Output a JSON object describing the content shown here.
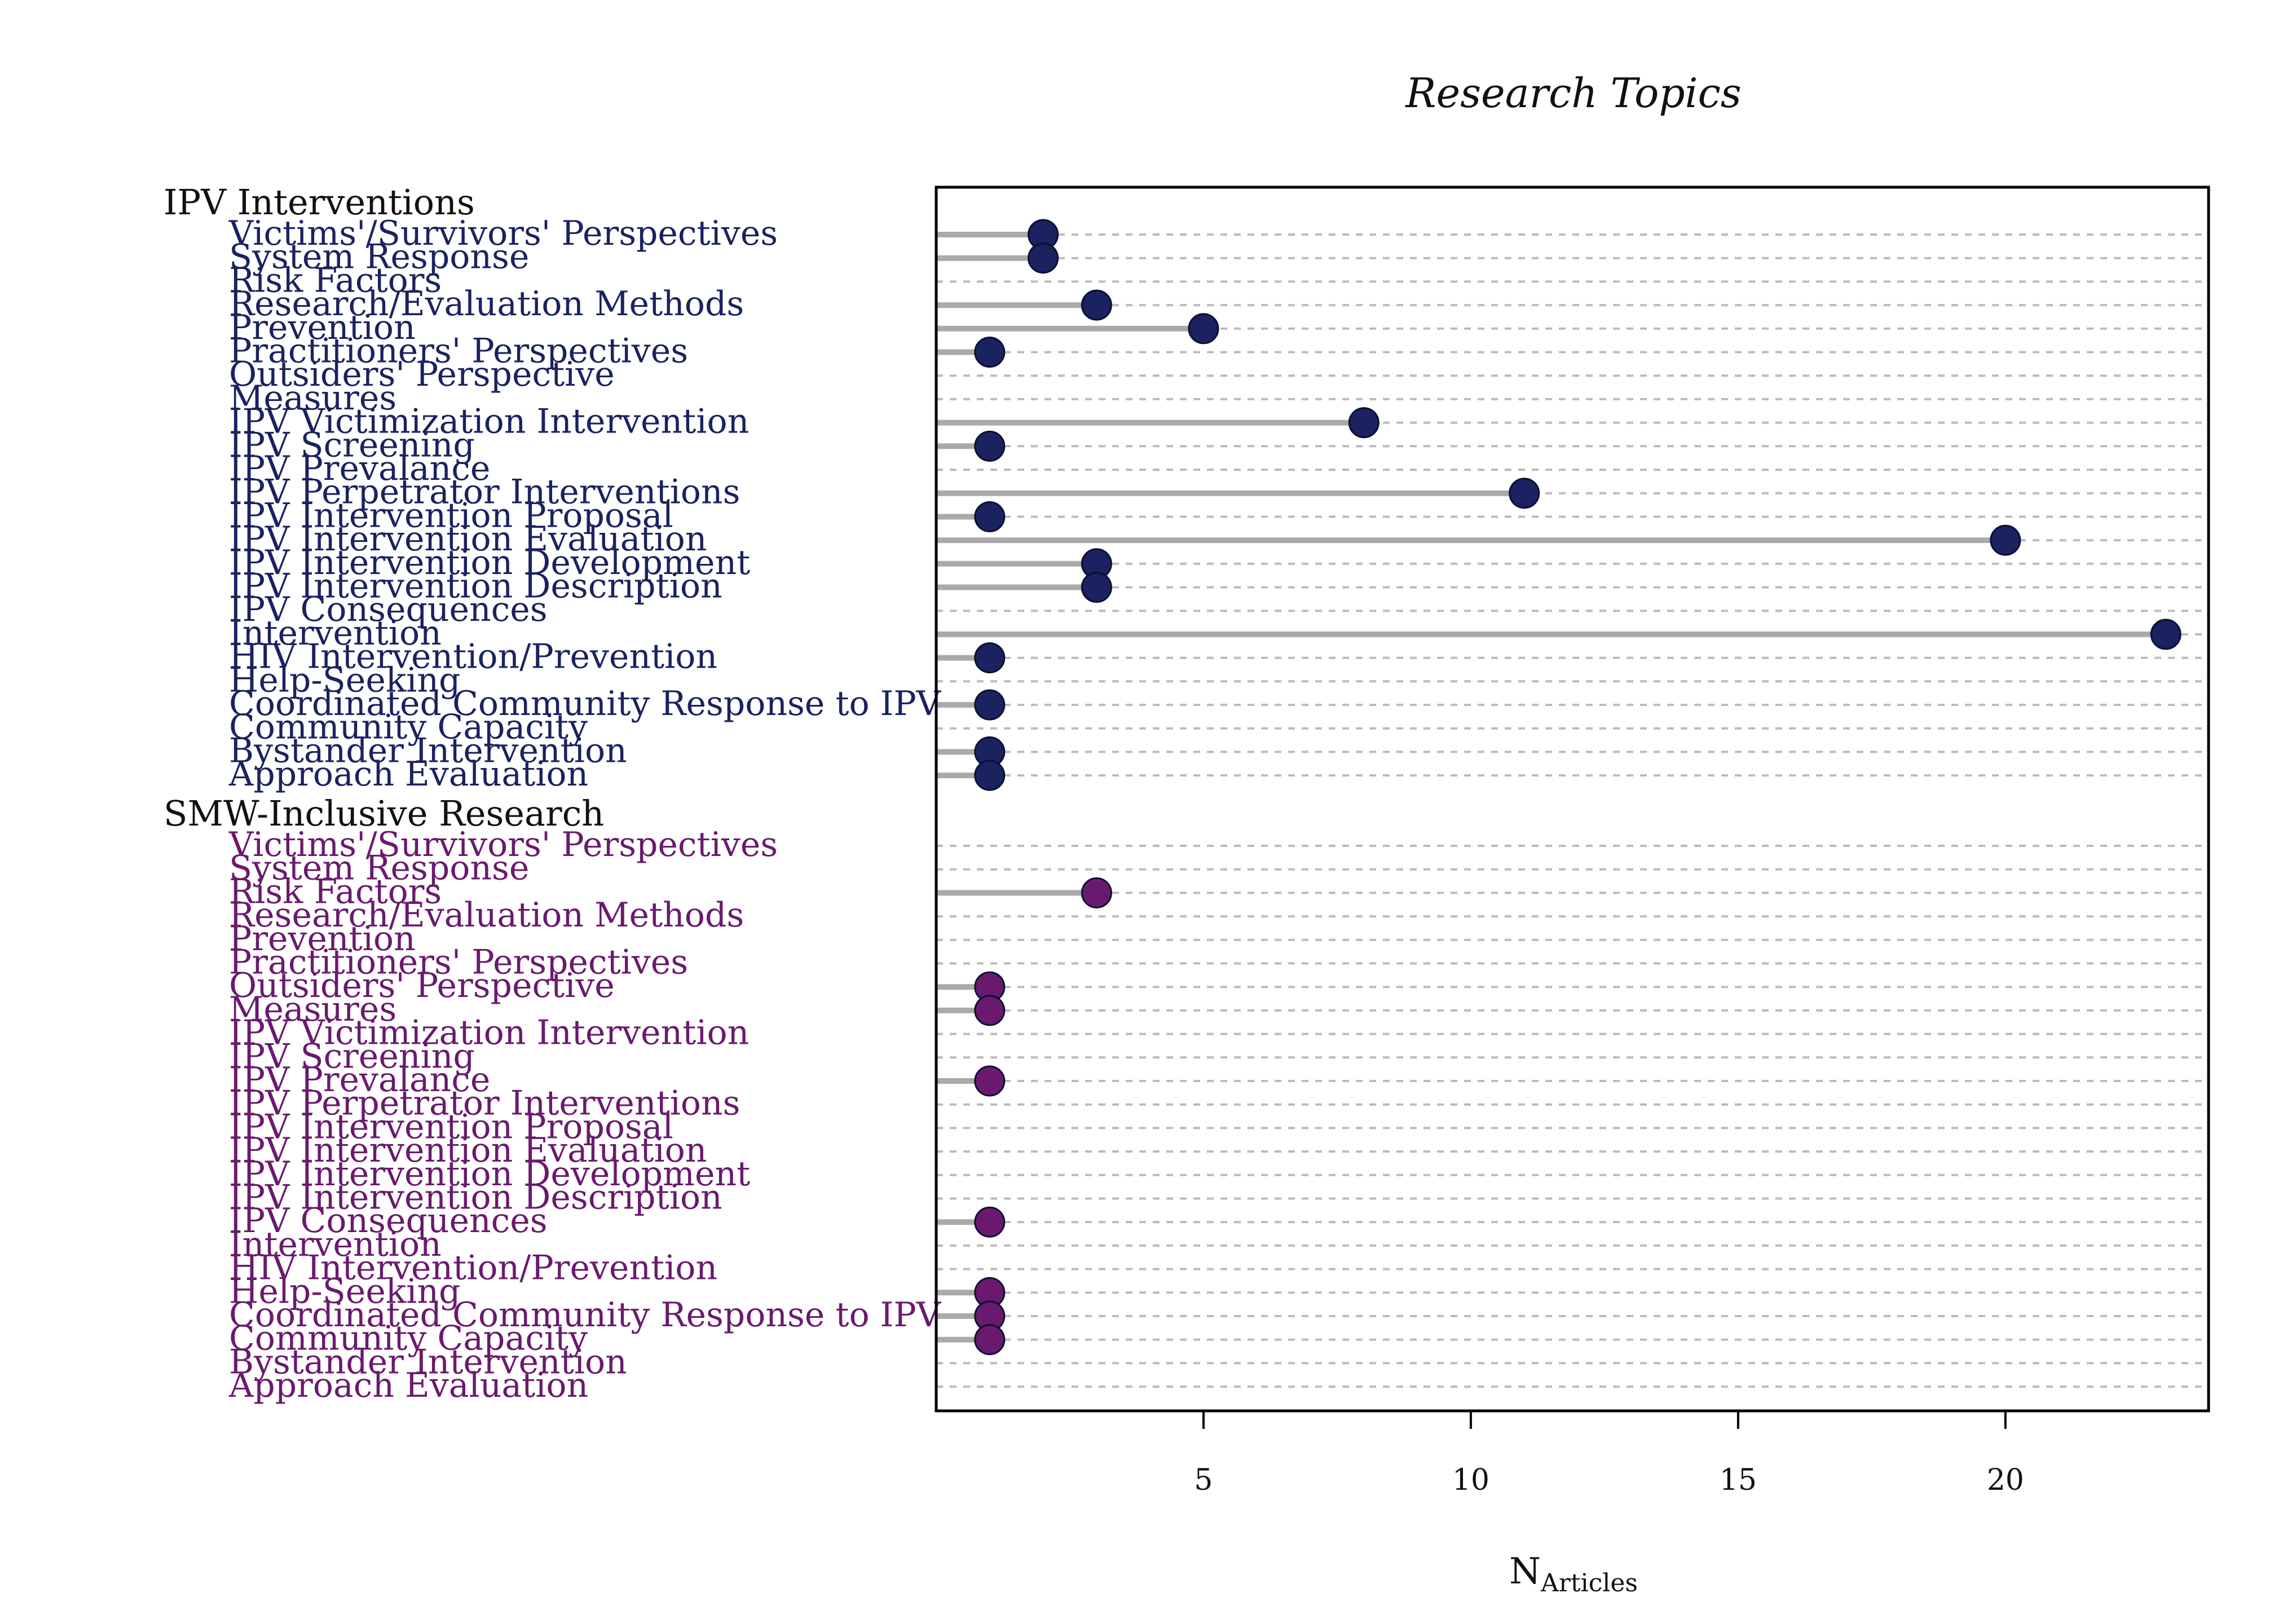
{
  "chart_data": {
    "type": "dot",
    "title": "Research Topics",
    "xlabel": "N",
    "xlabel_subscript": "Articles",
    "xlim": [
      0,
      23.8
    ],
    "xticks": [
      5,
      10,
      15,
      20
    ],
    "grid": "dashed horizontal lines per row",
    "groups": [
      {
        "name": "IPV Interventions",
        "color": "#1a2260",
        "rows": [
          {
            "label": "Victims'/Survivors' Perspectives",
            "value": 2
          },
          {
            "label": "System Response",
            "value": 2
          },
          {
            "label": "Risk Factors",
            "value": 0
          },
          {
            "label": "Research/Evaluation Methods",
            "value": 3
          },
          {
            "label": "Prevention",
            "value": 5
          },
          {
            "label": "Practitioners' Perspectives",
            "value": 1
          },
          {
            "label": "Outsiders' Perspective",
            "value": 0
          },
          {
            "label": "Measures",
            "value": 0
          },
          {
            "label": "IPV Victimization Intervention",
            "value": 8
          },
          {
            "label": "IPV Screening",
            "value": 1
          },
          {
            "label": "IPV Prevalance",
            "value": 0
          },
          {
            "label": "IPV Perpetrator Interventions",
            "value": 11
          },
          {
            "label": "IPV Intervention Proposal",
            "value": 1
          },
          {
            "label": "IPV Intervention Evaluation",
            "value": 20
          },
          {
            "label": "IPV Intervention Development",
            "value": 3
          },
          {
            "label": "IPV Intervention Description",
            "value": 3
          },
          {
            "label": "IPV Consequences",
            "value": 0
          },
          {
            "label": "Intervention",
            "value": 23
          },
          {
            "label": "HIV Intervention/Prevention",
            "value": 1
          },
          {
            "label": "Help-Seeking",
            "value": 0
          },
          {
            "label": "Coordinated Community Response to IPV",
            "value": 1
          },
          {
            "label": "Community Capacity",
            "value": 0
          },
          {
            "label": "Bystander Intervention",
            "value": 1
          },
          {
            "label": "Approach Evaluation",
            "value": 1
          }
        ]
      },
      {
        "name": "SMW-Inclusive Research",
        "color": "#6a1a6e",
        "rows": [
          {
            "label": "Victims'/Survivors' Perspectives",
            "value": 0
          },
          {
            "label": "System Response",
            "value": 0
          },
          {
            "label": "Risk Factors",
            "value": 3
          },
          {
            "label": "Research/Evaluation Methods",
            "value": 0
          },
          {
            "label": "Prevention",
            "value": 0
          },
          {
            "label": "Practitioners' Perspectives",
            "value": 0
          },
          {
            "label": "Outsiders' Perspective",
            "value": 1
          },
          {
            "label": "Measures",
            "value": 1
          },
          {
            "label": "IPV Victimization Intervention",
            "value": 0
          },
          {
            "label": "IPV Screening",
            "value": 0
          },
          {
            "label": "IPV Prevalance",
            "value": 1
          },
          {
            "label": "IPV Perpetrator Interventions",
            "value": 0
          },
          {
            "label": "IPV Intervention Proposal",
            "value": 0
          },
          {
            "label": "IPV Intervention Evaluation",
            "value": 0
          },
          {
            "label": "IPV Intervention Development",
            "value": 0
          },
          {
            "label": "IPV Intervention Description",
            "value": 0
          },
          {
            "label": "IPV Consequences",
            "value": 1
          },
          {
            "label": "Intervention",
            "value": 0
          },
          {
            "label": "HIV Intervention/Prevention",
            "value": 0
          },
          {
            "label": "Help-Seeking",
            "value": 1
          },
          {
            "label": "Coordinated Community Response to IPV",
            "value": 1
          },
          {
            "label": "Community Capacity",
            "value": 1
          },
          {
            "label": "Bystander Intervention",
            "value": 0
          },
          {
            "label": "Approach Evaluation",
            "value": 0
          }
        ]
      }
    ]
  },
  "colors": {
    "stem": "#aaaaaa",
    "grid": "#bbbbbb",
    "frame": "#000000"
  }
}
